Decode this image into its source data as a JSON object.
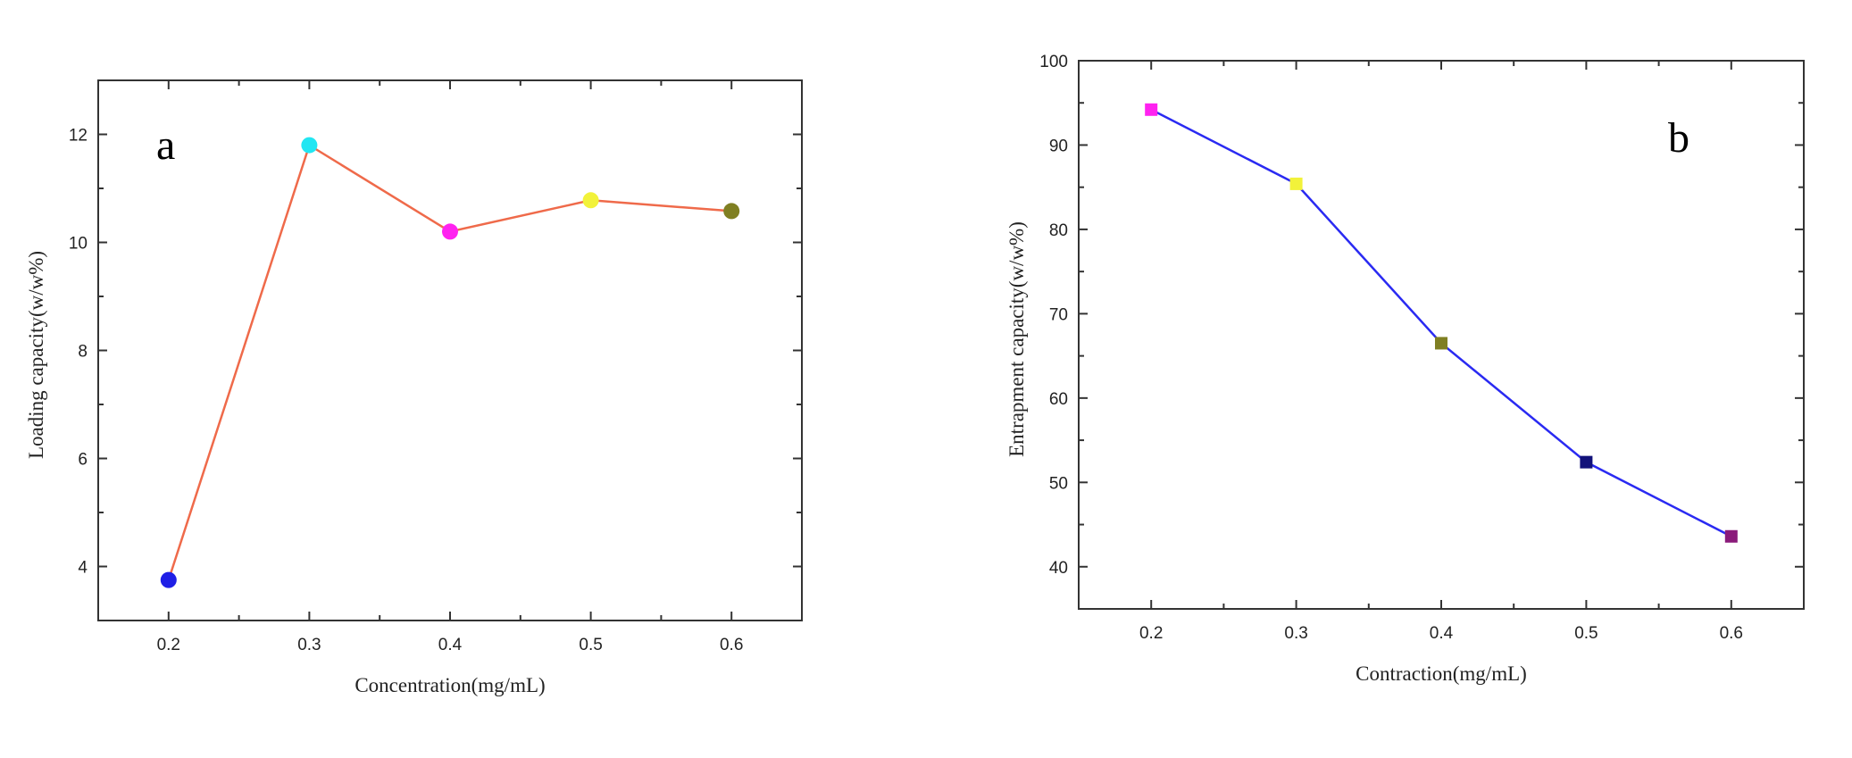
{
  "chart_data": [
    {
      "type": "line",
      "panel_label": "a",
      "xlabel": "Concentration(mg/mL)",
      "ylabel": "Loading capacity(w/w%)",
      "xlim": [
        0.15,
        0.65
      ],
      "ylim": [
        3.0,
        13.0
      ],
      "xticks": [
        "0.2",
        "0.3",
        "0.4",
        "0.5",
        "0.6"
      ],
      "yticks": [
        "4",
        "6",
        "8",
        "10",
        "12"
      ],
      "x": [
        0.2,
        0.3,
        0.4,
        0.5,
        0.6
      ],
      "values": [
        3.75,
        11.8,
        10.2,
        10.78,
        10.58
      ],
      "marker": "circle",
      "line_color": "#ef6a4a",
      "marker_colors": [
        "#1f1fe6",
        "#22e6f2",
        "#ff22f0",
        "#f2f23a",
        "#7f7f22"
      ],
      "grid": false
    },
    {
      "type": "line",
      "panel_label": "b",
      "xlabel": "Contraction(mg/mL)",
      "ylabel": "Entrapment capacity(w/w%)",
      "xlim": [
        0.15,
        0.65
      ],
      "ylim": [
        35,
        100
      ],
      "xticks": [
        "0.2",
        "0.3",
        "0.4",
        "0.5",
        "0.6"
      ],
      "yticks": [
        "40",
        "50",
        "60",
        "70",
        "80",
        "90",
        "100"
      ],
      "x": [
        0.2,
        0.3,
        0.4,
        0.5,
        0.6
      ],
      "values": [
        94.2,
        85.4,
        66.5,
        52.4,
        43.6
      ],
      "marker": "square",
      "line_color": "#2a2af2",
      "marker_colors": [
        "#ff22f0",
        "#f2f23a",
        "#7f7f22",
        "#12127a",
        "#8a1a7a"
      ],
      "grid": false
    }
  ]
}
